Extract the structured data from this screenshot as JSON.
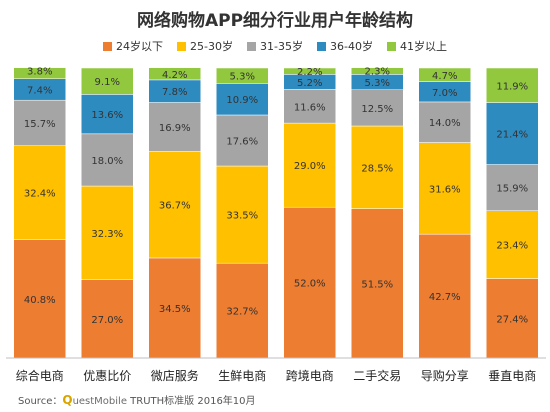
{
  "chart_data": {
    "type": "bar",
    "stacked": true,
    "percent": true,
    "title": "网络购物APP细分行业用户年龄结构",
    "categories": [
      "综合电商",
      "优惠比价",
      "微店服务",
      "生鲜电商",
      "跨境电商",
      "二手交易",
      "导购分享",
      "垂直电商"
    ],
    "series": [
      {
        "name": "24岁以下",
        "color": "#ed7d31",
        "values": [
          40.8,
          27.0,
          34.5,
          32.7,
          52.0,
          51.5,
          42.7,
          27.4
        ],
        "labels": [
          "40.8%",
          "27.0%",
          "34.5%",
          "32.7%",
          "52.0%",
          "51.5%",
          "42.7%",
          "27.4%"
        ]
      },
      {
        "name": "25-30岁",
        "color": "#ffc000",
        "values": [
          32.4,
          32.3,
          36.7,
          33.5,
          29.0,
          28.5,
          31.6,
          23.4
        ],
        "labels": [
          "32.4%",
          "32.3%",
          "36.7%",
          "33.5%",
          "29.0%",
          "28.5%",
          "31.6%",
          "23.4%"
        ]
      },
      {
        "name": "31-35岁",
        "color": "#a5a5a5",
        "values": [
          15.7,
          18.0,
          16.9,
          17.6,
          11.6,
          12.5,
          14.0,
          15.9
        ],
        "labels": [
          "15.7%",
          "18.0%",
          "16.9%",
          "17.6%",
          "11.6%",
          "12.5%",
          "14.0%",
          "15.9%"
        ]
      },
      {
        "name": "36-40岁",
        "color": "#2e8bc0",
        "values": [
          7.4,
          13.6,
          7.8,
          10.9,
          5.2,
          5.3,
          7.0,
          21.4
        ],
        "labels": [
          "7.4%",
          "13.6%",
          "7.8%",
          "10.9%",
          "5.2%",
          "5.3%",
          "7.0%",
          "21.4%"
        ]
      },
      {
        "name": "41岁以上",
        "color": "#92c83e",
        "values": [
          3.8,
          9.1,
          4.2,
          5.3,
          2.2,
          2.3,
          4.7,
          11.9
        ],
        "labels": [
          "3.8%",
          "9.1%",
          "4.2%",
          "5.3%",
          "2.2%",
          "2.3%",
          "4.7%",
          "11.9%"
        ]
      }
    ],
    "ylim": [
      0,
      100
    ],
    "grid": false,
    "legend_position": "top",
    "source": {
      "prefix": "Source：",
      "brand_q": "Q",
      "brand_rest": "uestMobile",
      "suffix": " TRUTH标准版 2016年10月"
    }
  }
}
